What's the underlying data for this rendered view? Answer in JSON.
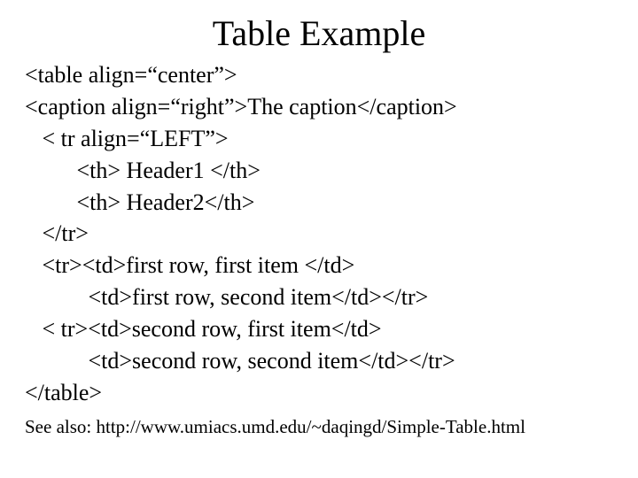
{
  "title": "Table Example",
  "lines": [
    "<table align=“center”>",
    "<caption align=“right”>The caption</caption>",
    "   < tr align=“LEFT”>",
    "         <th> Header1 </th>",
    "         <th> Header2</th>",
    "   </tr>",
    "   <tr><td>first row, first item </td>",
    "           <td>first row, second item</td></tr>",
    "   < tr><td>second row, first item</td>",
    "           <td>second row, second item</td></tr>",
    "</table>"
  ],
  "footer": "See also: http://www.umiacs.umd.edu/~daqingd/Simple-Table.html"
}
